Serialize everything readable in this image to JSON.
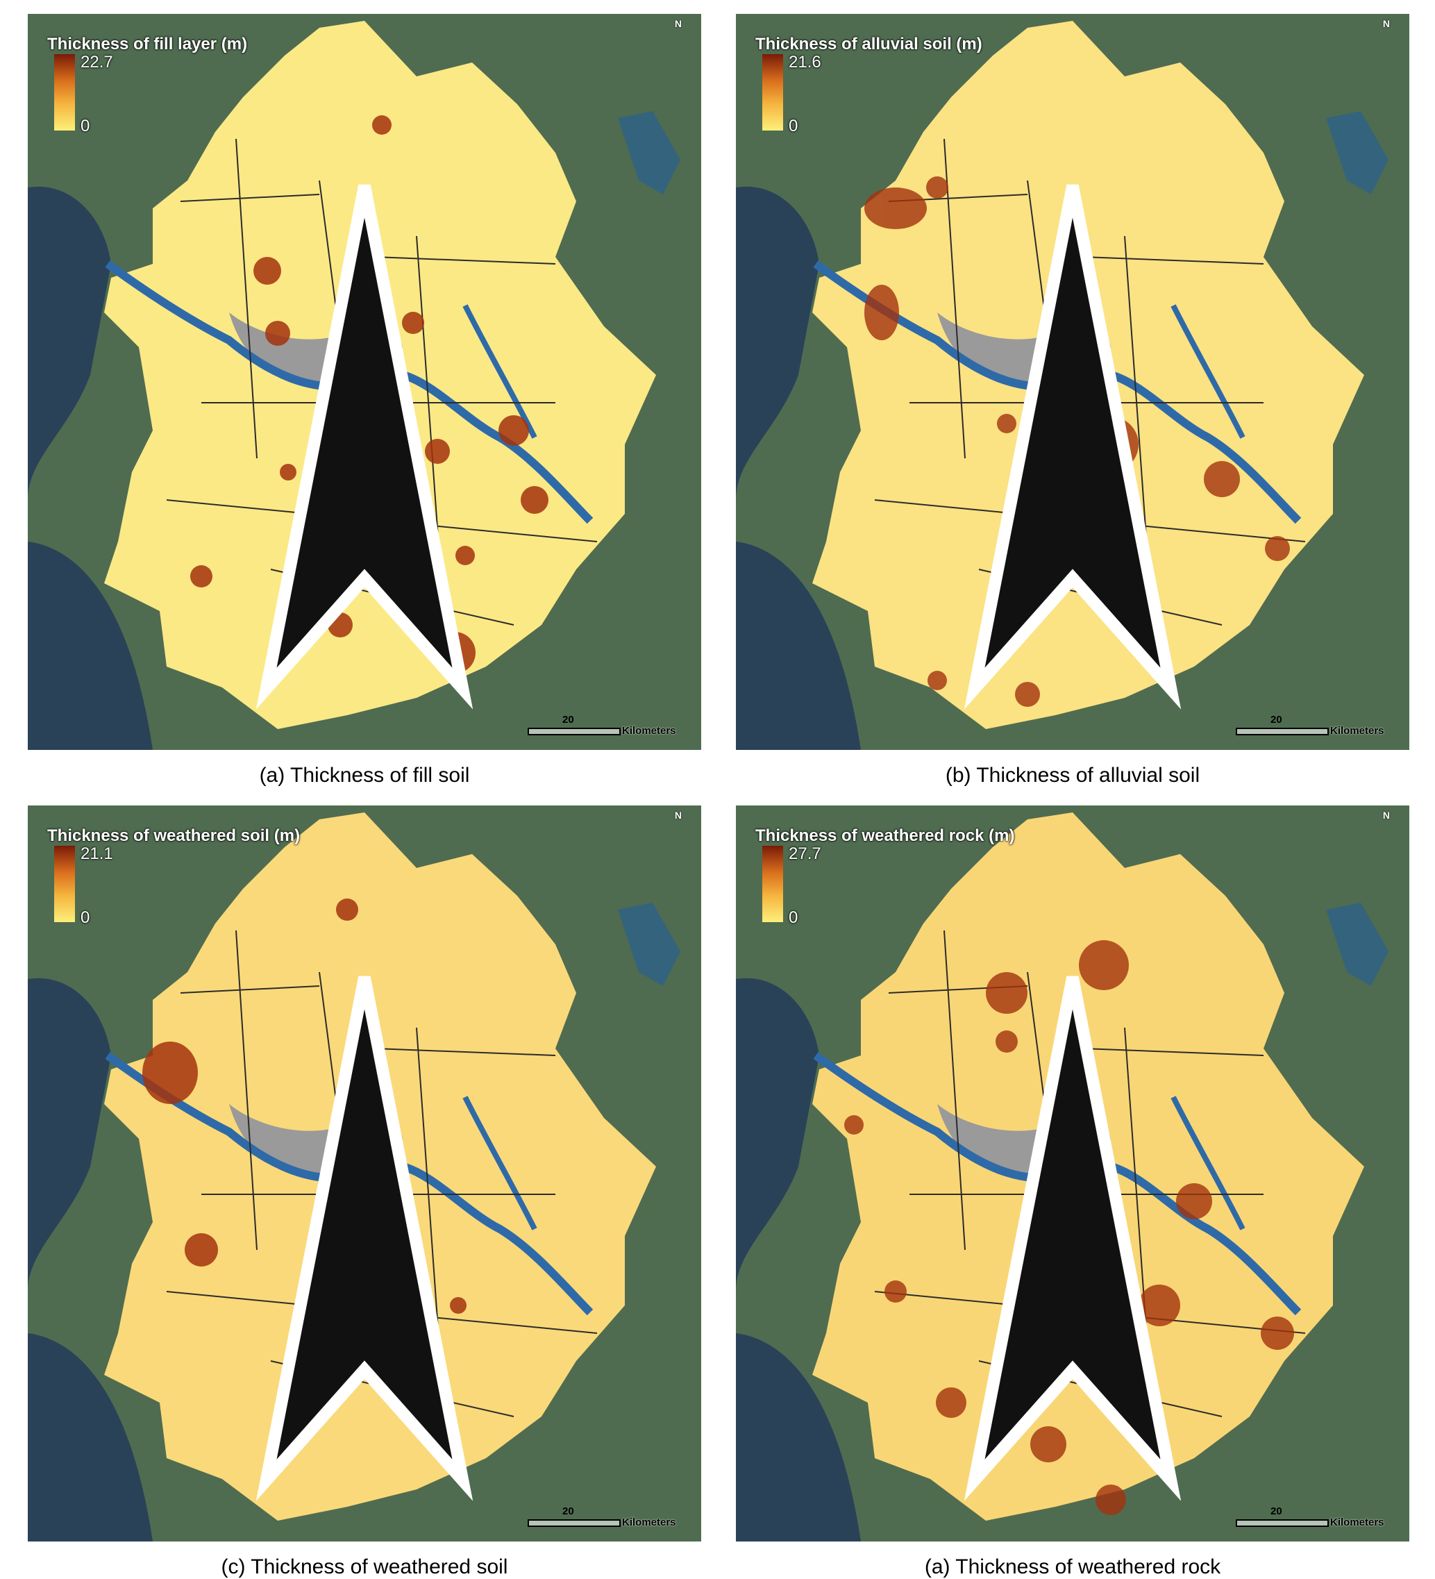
{
  "panels": [
    {
      "legend_title": "Thickness of fill layer (m)",
      "legend_max": "22.7",
      "legend_min": "0",
      "north_label": "N",
      "scale_value": "20",
      "scale_unit": "Kilometers",
      "caption": "(a)  Thickness  of  fill  soil"
    },
    {
      "legend_title": "Thickness of alluvial soil (m)",
      "legend_max": "21.6",
      "legend_min": "0",
      "north_label": "N",
      "scale_value": "20",
      "scale_unit": "Kilometers",
      "caption": "(b)  Thickness  of  alluvial  soil"
    },
    {
      "legend_title": "Thickness of weathered soil (m)",
      "legend_max": "21.1",
      "legend_min": "0",
      "north_label": "N",
      "scale_value": "20",
      "scale_unit": "Kilometers",
      "caption": "(c)  Thickness  of  weathered  soil"
    },
    {
      "legend_title": "Thickness of weathered rock (m)",
      "legend_max": "27.7",
      "legend_min": "0",
      "north_label": "N",
      "scale_value": "20",
      "scale_unit": "Kilometers",
      "caption": "(a)  Thickness  of  weathered  rock"
    }
  ],
  "colors": {
    "high": "#7a1a08",
    "mid": "#f5b43e",
    "low": "#fdf07a",
    "river": "#2f6aa8",
    "seoul": "#9a9a9a"
  }
}
